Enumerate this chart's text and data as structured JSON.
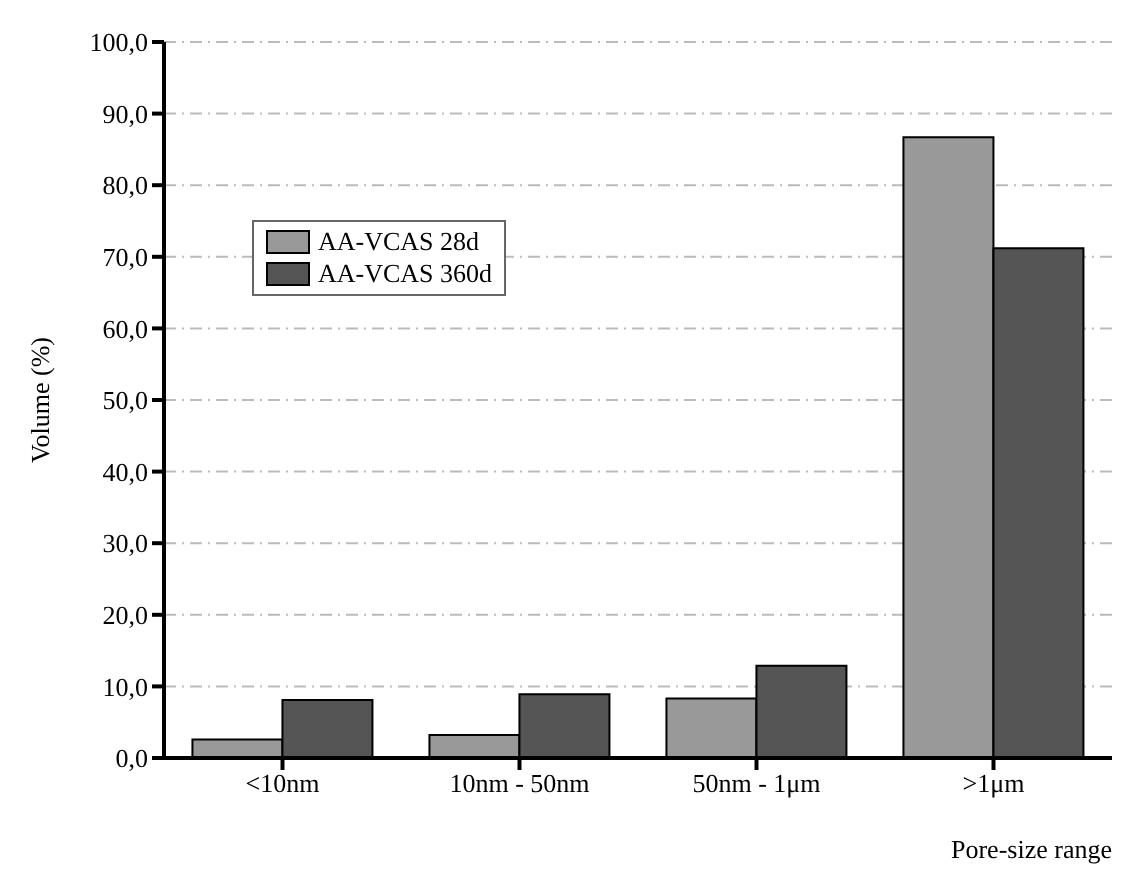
{
  "chart_data": {
    "type": "bar",
    "xlabel": "Pore-size range",
    "ylabel": "Volume (%)",
    "categories": [
      "<10nm",
      "10nm - 50nm",
      "50nm - 1μm",
      ">1μm"
    ],
    "series": [
      {
        "name": "AA-VCAS 28d",
        "color": "#999999",
        "values": [
          2.6,
          3.2,
          8.3,
          86.7
        ]
      },
      {
        "name": "AA-VCAS 360d",
        "color": "#555555",
        "values": [
          8.1,
          8.9,
          12.9,
          71.2
        ]
      }
    ],
    "ylim": [
      0,
      100
    ],
    "yticks": [
      {
        "value": 0,
        "label": "0,0"
      },
      {
        "value": 10,
        "label": "10,0"
      },
      {
        "value": 20,
        "label": "20,0"
      },
      {
        "value": 30,
        "label": "30,0"
      },
      {
        "value": 40,
        "label": "40,0"
      },
      {
        "value": 50,
        "label": "50,0"
      },
      {
        "value": 60,
        "label": "60,0"
      },
      {
        "value": 70,
        "label": "70,0"
      },
      {
        "value": 80,
        "label": "80,0"
      },
      {
        "value": 90,
        "label": "90,0"
      },
      {
        "value": 100,
        "label": "100,0"
      }
    ],
    "grid": "y",
    "legend": "top left"
  }
}
